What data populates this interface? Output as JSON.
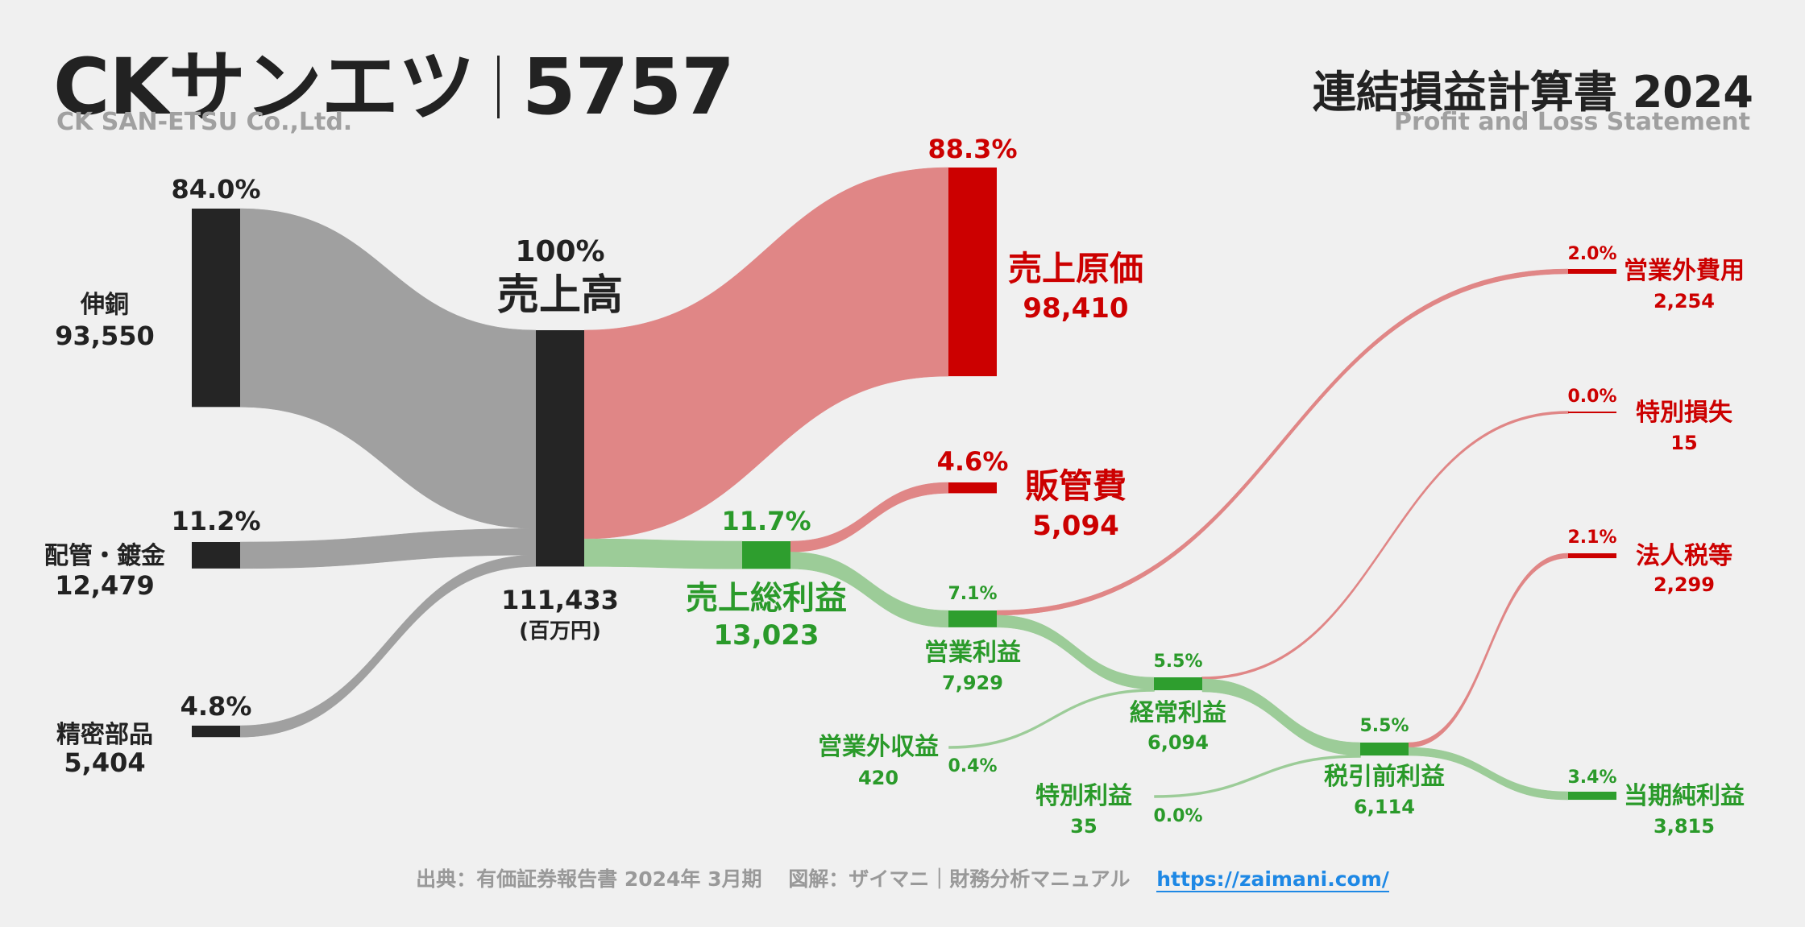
{
  "header": {
    "company_name": "CKサンエツ",
    "ticker": "5757",
    "company_name_en": "CK SAN-ETSU Co.,Ltd.",
    "statement_title": "連結損益計算書 2024",
    "statement_title_en": "Profit and Loss Statement"
  },
  "footer": {
    "source": "出典：有価証券報告書 2024年 3月期",
    "credit": "図解：ザイマニ｜財務分析マニュアル",
    "url": "https://zaimani.com/"
  },
  "colors": {
    "revenue": "#252525",
    "revenue_flow": "#a0a0a0",
    "cost": "#cc0000",
    "cost_flow": "#e08686",
    "profit": "#2e9e2e",
    "profit_flow": "#9ccc98",
    "profit_text": "#2a9a2a"
  },
  "chart_data": {
    "type": "sankey",
    "unit": "(百万円)",
    "nodes": [
      {
        "id": "shindo",
        "name": "伸銅",
        "value": "93,550",
        "pct": "84.0%",
        "kind": "revenue"
      },
      {
        "id": "haikan",
        "name": "配管・鍍金",
        "value": "12,479",
        "pct": "11.2%",
        "kind": "revenue"
      },
      {
        "id": "seimitsu",
        "name": "精密部品",
        "value": "5,404",
        "pct": "4.8%",
        "kind": "revenue"
      },
      {
        "id": "revenue",
        "name": "売上高",
        "value": "111,433",
        "pct": "100%",
        "kind": "revenue"
      },
      {
        "id": "cogs",
        "name": "売上原価",
        "value": "98,410",
        "pct": "88.3%",
        "kind": "cost"
      },
      {
        "id": "gross",
        "name": "売上総利益",
        "value": "13,023",
        "pct": "11.7%",
        "kind": "profit"
      },
      {
        "id": "sga",
        "name": "販管費",
        "value": "5,094",
        "pct": "4.6%",
        "kind": "cost"
      },
      {
        "id": "op",
        "name": "営業利益",
        "value": "7,929",
        "pct": "7.1%",
        "kind": "profit"
      },
      {
        "id": "nonop_inc",
        "name": "営業外収益",
        "value": "420",
        "pct": "0.4%",
        "kind": "profit"
      },
      {
        "id": "nonop_exp",
        "name": "営業外費用",
        "value": "2,254",
        "pct": "2.0%",
        "kind": "cost"
      },
      {
        "id": "ordinary",
        "name": "経常利益",
        "value": "6,094",
        "pct": "5.5%",
        "kind": "profit"
      },
      {
        "id": "ext_gain",
        "name": "特別利益",
        "value": "35",
        "pct": "0.0%",
        "kind": "profit"
      },
      {
        "id": "ext_loss",
        "name": "特別損失",
        "value": "15",
        "pct": "0.0%",
        "kind": "cost"
      },
      {
        "id": "pretax",
        "name": "税引前利益",
        "value": "6,114",
        "pct": "5.5%",
        "kind": "profit"
      },
      {
        "id": "tax",
        "name": "法人税等",
        "value": "2,299",
        "pct": "2.1%",
        "kind": "cost"
      },
      {
        "id": "net",
        "name": "当期純利益",
        "value": "3,815",
        "pct": "3.4%",
        "kind": "profit"
      }
    ],
    "links": [
      {
        "source": "shindo",
        "target": "revenue",
        "value": 93550
      },
      {
        "source": "haikan",
        "target": "revenue",
        "value": 12479
      },
      {
        "source": "seimitsu",
        "target": "revenue",
        "value": 5404
      },
      {
        "source": "revenue",
        "target": "cogs",
        "value": 98410
      },
      {
        "source": "revenue",
        "target": "gross",
        "value": 13023
      },
      {
        "source": "gross",
        "target": "sga",
        "value": 5094
      },
      {
        "source": "gross",
        "target": "op",
        "value": 7929
      },
      {
        "source": "op",
        "target": "nonop_exp",
        "value": 2254
      },
      {
        "source": "op",
        "target": "ordinary",
        "value": 5675
      },
      {
        "source": "nonop_inc",
        "target": "ordinary",
        "value": 420
      },
      {
        "source": "ordinary",
        "target": "ext_loss",
        "value": 15
      },
      {
        "source": "ordinary",
        "target": "pretax",
        "value": 6079
      },
      {
        "source": "ext_gain",
        "target": "pretax",
        "value": 35
      },
      {
        "source": "pretax",
        "target": "tax",
        "value": 2299
      },
      {
        "source": "pretax",
        "target": "net",
        "value": 3815
      }
    ]
  }
}
